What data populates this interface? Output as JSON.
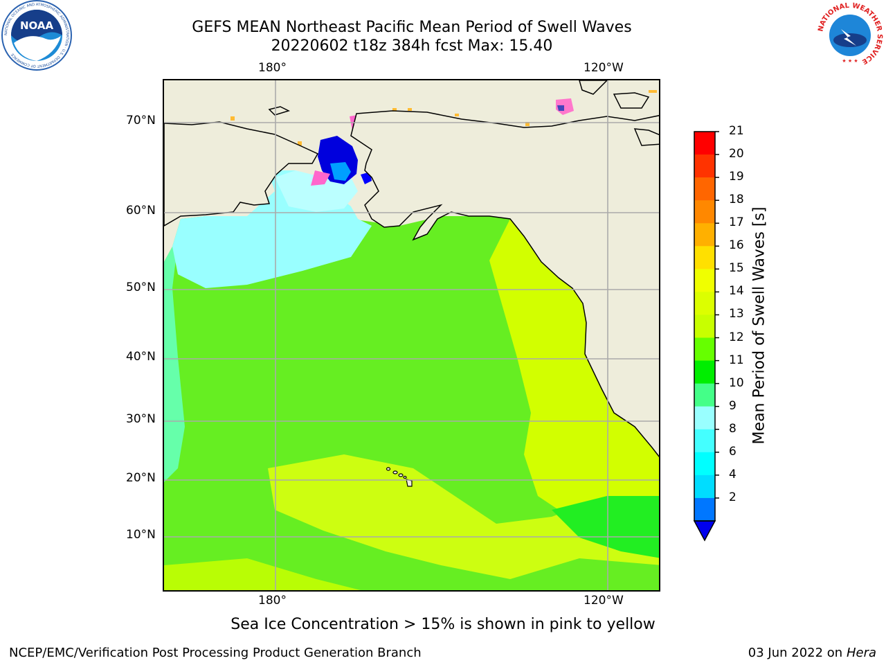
{
  "title_line1": "GEFS MEAN Northeast Pacific Mean Period of Swell Waves",
  "title_line2": "20220602 t18z 384h fcst   Max: 15.40",
  "map": {
    "lat_labels": [
      "70°N",
      "60°N",
      "50°N",
      "40°N",
      "30°N",
      "20°N",
      "10°N"
    ],
    "lon_labels_top": [
      "180°",
      "120°W"
    ],
    "lon_labels_bottom": [
      "180°",
      "120°W"
    ],
    "land_color": "#eeeddb",
    "ocean_main_color": "#66ee22",
    "coast_color": "#000000"
  },
  "colorbar": {
    "label": "Mean Period of Swell Waves [s]",
    "ticks": [
      "21",
      "20",
      "19",
      "18",
      "17",
      "16",
      "15",
      "14",
      "13",
      "12",
      "11",
      "10",
      "9",
      "8",
      "6",
      "4",
      "2"
    ],
    "colors": [
      "#ff0000",
      "#ff3300",
      "#ff6600",
      "#ff8800",
      "#ffb000",
      "#ffe000",
      "#f0ff00",
      "#dcff00",
      "#c8ff00",
      "#66ff00",
      "#00ee00",
      "#44ff88",
      "#99ffff",
      "#44ffff",
      "#00ffff",
      "#00ddff",
      "#0077ff"
    ],
    "extend_color": "#0000ee"
  },
  "note": "Sea Ice Concentration > 15% is shown in pink to yellow",
  "footer": {
    "left": "NCEP/EMC/Verification Post Processing Product Generation Branch",
    "date": "03 Jun 2022 on",
    "host": "Hera"
  },
  "logos": {
    "noaa_text": "NOAA",
    "noaa_ring": "NATIONAL OCEANIC AND ATMOSPHERIC ADMINISTRATION · U.S. DEPARTMENT OF COMMERCE",
    "nws_ring": "NATIONAL WEATHER SERVICE"
  }
}
